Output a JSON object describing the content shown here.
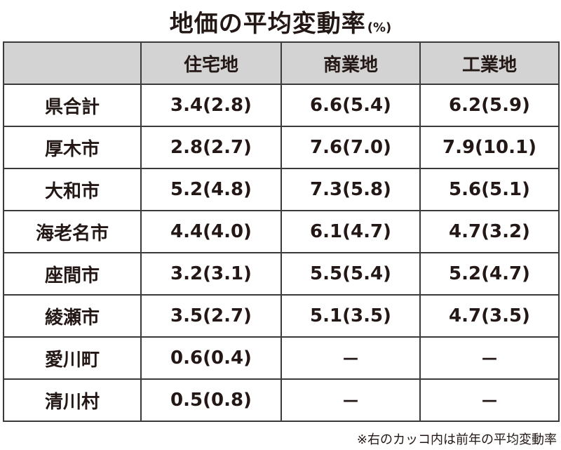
{
  "title": "地価の平均変動率",
  "unit": "(%)",
  "footnote": "※右のカッコ内は前年の平均変動率",
  "chart_data": {
    "type": "table",
    "title": "地価の平均変動率",
    "unit": "%",
    "columns": [
      "",
      "住宅地",
      "商業地",
      "工業地"
    ],
    "rows": [
      {
        "name": "県合計",
        "cells": [
          "3.4(2.8)",
          "6.6(5.4)",
          "6.2(5.9)"
        ]
      },
      {
        "name": "厚木市",
        "cells": [
          "2.8(2.7)",
          "7.6(7.0)",
          "7.9(10.1)"
        ]
      },
      {
        "name": "大和市",
        "cells": [
          "5.2(4.8)",
          "7.3(5.8)",
          "5.6(5.1)"
        ]
      },
      {
        "name": "海老名市",
        "cells": [
          "4.4(4.0)",
          "6.1(4.7)",
          "4.7(3.2)"
        ]
      },
      {
        "name": "座間市",
        "cells": [
          "3.2(3.1)",
          "5.5(5.4)",
          "5.2(4.7)"
        ]
      },
      {
        "name": "綾瀬市",
        "cells": [
          "3.5(2.7)",
          "5.1(3.5)",
          "4.7(3.5)"
        ]
      },
      {
        "name": "愛川町",
        "cells": [
          "0.6(0.4)",
          "－",
          "－"
        ]
      },
      {
        "name": "清川村",
        "cells": [
          "0.5(0.8)",
          "－",
          "－"
        ]
      }
    ]
  }
}
